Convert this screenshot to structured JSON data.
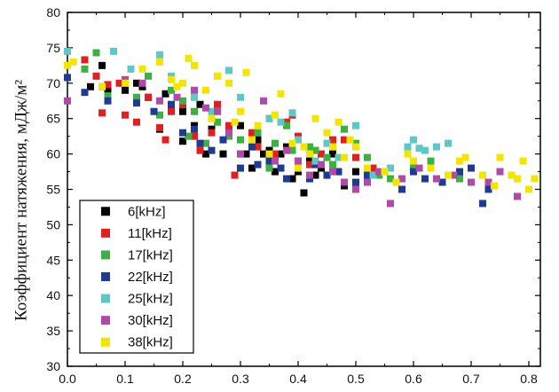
{
  "chart_data": {
    "type": "scatter",
    "title": "",
    "xlabel": "",
    "ylabel": "Коэффициент натяжения, мДж/м²",
    "xlim": [
      0.0,
      0.82
    ],
    "ylim": [
      30,
      80
    ],
    "x_ticks": [
      "0.0",
      "0.1",
      "0.2",
      "0.3",
      "0.4",
      "0.5",
      "0.6",
      "0.7",
      "0.8"
    ],
    "y_ticks": [
      "30",
      "35",
      "40",
      "45",
      "50",
      "55",
      "60",
      "65",
      "70",
      "75",
      "80"
    ],
    "grid": false,
    "legend_position": "bottom-left",
    "series": [
      {
        "name": "6[kHz]",
        "color": "#000000",
        "points": [
          [
            0.04,
            69.5
          ],
          [
            0.06,
            72.5
          ],
          [
            0.07,
            69
          ],
          [
            0.1,
            69
          ],
          [
            0.12,
            70
          ],
          [
            0.13,
            69.5
          ],
          [
            0.14,
            68
          ],
          [
            0.16,
            63.5
          ],
          [
            0.17,
            68.5
          ],
          [
            0.18,
            66.5
          ],
          [
            0.2,
            66
          ],
          [
            0.2,
            61.8
          ],
          [
            0.22,
            64
          ],
          [
            0.23,
            67
          ],
          [
            0.24,
            60
          ],
          [
            0.25,
            63.5
          ],
          [
            0.27,
            60
          ],
          [
            0.28,
            63
          ],
          [
            0.3,
            64
          ],
          [
            0.31,
            60
          ],
          [
            0.32,
            58
          ],
          [
            0.33,
            62
          ],
          [
            0.34,
            60
          ],
          [
            0.35,
            60.5
          ],
          [
            0.36,
            57.5
          ],
          [
            0.37,
            60
          ],
          [
            0.38,
            61
          ],
          [
            0.39,
            56.5
          ],
          [
            0.4,
            57.5
          ],
          [
            0.41,
            54.5
          ],
          [
            0.42,
            59
          ],
          [
            0.43,
            57
          ],
          [
            0.44,
            58
          ],
          [
            0.45,
            57
          ],
          [
            0.46,
            60
          ],
          [
            0.47,
            57.5
          ],
          [
            0.48,
            55.5
          ],
          [
            0.5,
            57.5
          ]
        ]
      },
      {
        "name": "11[kHz]",
        "color": "#e02020",
        "points": [
          [
            0.03,
            73.3
          ],
          [
            0.05,
            71
          ],
          [
            0.06,
            65.8
          ],
          [
            0.07,
            69.8
          ],
          [
            0.09,
            70
          ],
          [
            0.1,
            65.5
          ],
          [
            0.12,
            64.5
          ],
          [
            0.14,
            68
          ],
          [
            0.16,
            63.7
          ],
          [
            0.17,
            62
          ],
          [
            0.18,
            66
          ],
          [
            0.2,
            67
          ],
          [
            0.22,
            62.5
          ],
          [
            0.23,
            60.5
          ],
          [
            0.25,
            63
          ],
          [
            0.26,
            67
          ],
          [
            0.28,
            64
          ],
          [
            0.29,
            57
          ],
          [
            0.3,
            60
          ],
          [
            0.32,
            63
          ],
          [
            0.33,
            61
          ],
          [
            0.35,
            65
          ],
          [
            0.36,
            60
          ],
          [
            0.38,
            64.5
          ],
          [
            0.39,
            65.5
          ],
          [
            0.4,
            62.5
          ],
          [
            0.42,
            58.5
          ],
          [
            0.44,
            60
          ],
          [
            0.46,
            62
          ],
          [
            0.47,
            57.5
          ],
          [
            0.48,
            62
          ],
          [
            0.5,
            59.5
          ],
          [
            0.52,
            57
          ],
          [
            0.53,
            58
          ]
        ]
      },
      {
        "name": "17[kHz]",
        "color": "#3cb043",
        "points": [
          [
            0.03,
            72
          ],
          [
            0.05,
            74.3
          ],
          [
            0.07,
            68.2
          ],
          [
            0.1,
            70
          ],
          [
            0.12,
            68
          ],
          [
            0.14,
            71
          ],
          [
            0.16,
            65.5
          ],
          [
            0.18,
            69
          ],
          [
            0.2,
            67.5
          ],
          [
            0.21,
            62.5
          ],
          [
            0.22,
            66
          ],
          [
            0.24,
            61.5
          ],
          [
            0.26,
            64.5
          ],
          [
            0.28,
            62.5
          ],
          [
            0.3,
            62
          ],
          [
            0.32,
            61.5
          ],
          [
            0.33,
            63
          ],
          [
            0.35,
            58
          ],
          [
            0.36,
            61.5
          ],
          [
            0.38,
            64
          ],
          [
            0.39,
            60.5
          ],
          [
            0.4,
            59
          ],
          [
            0.42,
            61
          ],
          [
            0.43,
            60.5
          ],
          [
            0.45,
            59.5
          ],
          [
            0.46,
            58.5
          ],
          [
            0.48,
            63.5
          ],
          [
            0.5,
            61.5
          ],
          [
            0.52,
            59.5
          ],
          [
            0.54,
            57
          ],
          [
            0.56,
            56.5
          ],
          [
            0.6,
            58.5
          ],
          [
            0.63,
            59
          ],
          [
            0.68,
            56.5
          ]
        ]
      },
      {
        "name": "22[kHz]",
        "color": "#1f3a93",
        "points": [
          [
            0.0,
            70.8
          ],
          [
            0.03,
            68.7
          ],
          [
            0.07,
            67.5
          ],
          [
            0.1,
            70
          ],
          [
            0.12,
            67.2
          ],
          [
            0.15,
            66
          ],
          [
            0.18,
            67
          ],
          [
            0.2,
            63
          ],
          [
            0.22,
            63.5
          ],
          [
            0.23,
            61.5
          ],
          [
            0.25,
            60.5
          ],
          [
            0.27,
            62
          ],
          [
            0.3,
            58
          ],
          [
            0.32,
            61
          ],
          [
            0.33,
            58.5
          ],
          [
            0.35,
            59
          ],
          [
            0.37,
            58
          ],
          [
            0.38,
            56.5
          ],
          [
            0.4,
            58
          ],
          [
            0.42,
            56.5
          ],
          [
            0.43,
            58.5
          ],
          [
            0.45,
            57
          ],
          [
            0.47,
            57.5
          ],
          [
            0.5,
            56
          ],
          [
            0.52,
            57
          ],
          [
            0.55,
            57.5
          ],
          [
            0.58,
            55
          ],
          [
            0.6,
            57.5
          ],
          [
            0.62,
            56.5
          ],
          [
            0.65,
            56
          ],
          [
            0.68,
            57.5
          ],
          [
            0.7,
            58
          ],
          [
            0.72,
            53
          ],
          [
            0.73,
            55
          ]
        ]
      },
      {
        "name": "25[kHz]",
        "color": "#5ec8c8",
        "points": [
          [
            0.0,
            74.5
          ],
          [
            0.08,
            74.5
          ],
          [
            0.11,
            72
          ],
          [
            0.16,
            74
          ],
          [
            0.18,
            71
          ],
          [
            0.22,
            68
          ],
          [
            0.25,
            66
          ],
          [
            0.28,
            71.8
          ],
          [
            0.3,
            68
          ],
          [
            0.32,
            62
          ],
          [
            0.35,
            65
          ],
          [
            0.37,
            64.5
          ],
          [
            0.39,
            65.8
          ],
          [
            0.4,
            62
          ],
          [
            0.43,
            59
          ],
          [
            0.45,
            61.5
          ],
          [
            0.47,
            59.5
          ],
          [
            0.5,
            64
          ],
          [
            0.53,
            57
          ],
          [
            0.56,
            58
          ],
          [
            0.59,
            61
          ],
          [
            0.6,
            62
          ],
          [
            0.61,
            60.8
          ],
          [
            0.62,
            60.5
          ],
          [
            0.64,
            61
          ],
          [
            0.66,
            61.5
          ]
        ]
      },
      {
        "name": "30[kHz]",
        "color": "#b04aa8",
        "points": [
          [
            0.0,
            67.5
          ],
          [
            0.06,
            69.5
          ],
          [
            0.1,
            70.5
          ],
          [
            0.13,
            70
          ],
          [
            0.16,
            67.5
          ],
          [
            0.19,
            68
          ],
          [
            0.22,
            69
          ],
          [
            0.24,
            66.5
          ],
          [
            0.26,
            66
          ],
          [
            0.28,
            63
          ],
          [
            0.3,
            60
          ],
          [
            0.32,
            62
          ],
          [
            0.34,
            67.5
          ],
          [
            0.36,
            59
          ],
          [
            0.38,
            60.5
          ],
          [
            0.4,
            59
          ],
          [
            0.42,
            57
          ],
          [
            0.44,
            58.5
          ],
          [
            0.46,
            57.5
          ],
          [
            0.48,
            56
          ],
          [
            0.5,
            55
          ],
          [
            0.52,
            56
          ],
          [
            0.54,
            57.5
          ],
          [
            0.56,
            53
          ],
          [
            0.58,
            56.5
          ],
          [
            0.61,
            58
          ],
          [
            0.64,
            56.5
          ],
          [
            0.67,
            57
          ],
          [
            0.7,
            56
          ],
          [
            0.73,
            56
          ],
          [
            0.75,
            57.5
          ],
          [
            0.78,
            54
          ]
        ]
      },
      {
        "name": "38[kHz]",
        "color": "#f2e600",
        "points": [
          [
            0.0,
            72.5
          ],
          [
            0.01,
            73
          ],
          [
            0.06,
            69.5
          ],
          [
            0.1,
            70
          ],
          [
            0.13,
            72
          ],
          [
            0.16,
            73
          ],
          [
            0.18,
            70.5
          ],
          [
            0.19,
            69.5
          ],
          [
            0.2,
            70
          ],
          [
            0.21,
            73.5
          ],
          [
            0.22,
            72.5
          ],
          [
            0.24,
            69
          ],
          [
            0.25,
            65
          ],
          [
            0.26,
            71
          ],
          [
            0.28,
            70
          ],
          [
            0.29,
            64.5
          ],
          [
            0.3,
            66
          ],
          [
            0.31,
            71.5
          ],
          [
            0.32,
            62
          ],
          [
            0.33,
            64
          ],
          [
            0.35,
            60
          ],
          [
            0.36,
            65.5
          ],
          [
            0.37,
            68.5
          ],
          [
            0.39,
            61.5
          ],
          [
            0.4,
            58
          ],
          [
            0.41,
            61
          ],
          [
            0.42,
            60
          ],
          [
            0.43,
            65
          ],
          [
            0.45,
            63
          ],
          [
            0.46,
            61
          ],
          [
            0.47,
            64.5
          ],
          [
            0.48,
            59.5
          ],
          [
            0.49,
            62
          ],
          [
            0.5,
            61
          ],
          [
            0.52,
            58
          ],
          [
            0.55,
            57.5
          ],
          [
            0.57,
            56
          ],
          [
            0.59,
            60
          ],
          [
            0.6,
            59
          ],
          [
            0.63,
            58
          ],
          [
            0.66,
            57
          ],
          [
            0.68,
            59
          ],
          [
            0.69,
            59.5
          ],
          [
            0.72,
            57
          ],
          [
            0.74,
            55.5
          ],
          [
            0.75,
            59.5
          ],
          [
            0.77,
            57
          ],
          [
            0.78,
            56.5
          ],
          [
            0.79,
            59
          ],
          [
            0.8,
            55
          ],
          [
            0.81,
            56.5
          ]
        ]
      }
    ]
  }
}
